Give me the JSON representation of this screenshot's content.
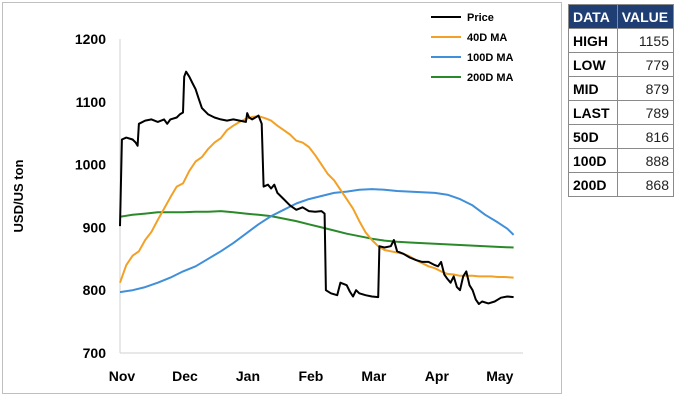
{
  "chart_data": {
    "type": "line",
    "ylabel": "USD/US ton",
    "xlabel": "",
    "ylim": [
      700,
      1200
    ],
    "yticks": [
      700,
      800,
      900,
      1000,
      1100,
      1200
    ],
    "xlim": [
      0,
      6.4
    ],
    "xticks": [
      {
        "label": "Nov",
        "x": 0
      },
      {
        "label": "Dec",
        "x": 1
      },
      {
        "label": "Jan",
        "x": 2
      },
      {
        "label": "Feb",
        "x": 3
      },
      {
        "label": "Mar",
        "x": 4
      },
      {
        "label": "Apr",
        "x": 5
      },
      {
        "label": "May",
        "x": 6
      }
    ],
    "grid": false,
    "legend_position": "top-right",
    "series": [
      {
        "name": "Price",
        "color": "#000000",
        "points": [
          [
            0,
            902
          ],
          [
            0.03,
            1040
          ],
          [
            0.1,
            1043
          ],
          [
            0.2,
            1040
          ],
          [
            0.25,
            1035
          ],
          [
            0.28,
            1030
          ],
          [
            0.3,
            1065
          ],
          [
            0.4,
            1070
          ],
          [
            0.5,
            1072
          ],
          [
            0.6,
            1068
          ],
          [
            0.7,
            1072
          ],
          [
            0.75,
            1065
          ],
          [
            0.8,
            1072
          ],
          [
            0.9,
            1075
          ],
          [
            0.95,
            1080
          ],
          [
            1.0,
            1083
          ],
          [
            1.02,
            1140
          ],
          [
            1.05,
            1148
          ],
          [
            1.1,
            1140
          ],
          [
            1.15,
            1130
          ],
          [
            1.2,
            1120
          ],
          [
            1.25,
            1105
          ],
          [
            1.3,
            1090
          ],
          [
            1.4,
            1080
          ],
          [
            1.5,
            1075
          ],
          [
            1.6,
            1072
          ],
          [
            1.7,
            1070
          ],
          [
            1.8,
            1072
          ],
          [
            1.9,
            1070
          ],
          [
            2.0,
            1068
          ],
          [
            2.02,
            1082
          ],
          [
            2.05,
            1075
          ],
          [
            2.1,
            1072
          ],
          [
            2.2,
            1078
          ],
          [
            2.25,
            1065
          ],
          [
            2.28,
            965
          ],
          [
            2.35,
            968
          ],
          [
            2.4,
            962
          ],
          [
            2.45,
            968
          ],
          [
            2.5,
            955
          ],
          [
            2.6,
            945
          ],
          [
            2.7,
            935
          ],
          [
            2.8,
            928
          ],
          [
            2.9,
            932
          ],
          [
            3.0,
            926
          ],
          [
            3.1,
            925
          ],
          [
            3.2,
            926
          ],
          [
            3.25,
            922
          ],
          [
            3.27,
            800
          ],
          [
            3.35,
            795
          ],
          [
            3.45,
            792
          ],
          [
            3.5,
            812
          ],
          [
            3.6,
            808
          ],
          [
            3.65,
            798
          ],
          [
            3.7,
            790
          ],
          [
            3.75,
            800
          ],
          [
            3.8,
            795
          ],
          [
            3.9,
            792
          ],
          [
            4.0,
            790
          ],
          [
            4.1,
            789
          ],
          [
            4.12,
            870
          ],
          [
            4.2,
            868
          ],
          [
            4.3,
            870
          ],
          [
            4.35,
            880
          ],
          [
            4.4,
            862
          ],
          [
            4.5,
            858
          ],
          [
            4.6,
            852
          ],
          [
            4.7,
            848
          ],
          [
            4.8,
            845
          ],
          [
            4.9,
            845
          ],
          [
            5.0,
            840
          ],
          [
            5.05,
            838
          ],
          [
            5.1,
            845
          ],
          [
            5.15,
            825
          ],
          [
            5.2,
            818
          ],
          [
            5.25,
            812
          ],
          [
            5.3,
            822
          ],
          [
            5.35,
            805
          ],
          [
            5.4,
            800
          ],
          [
            5.45,
            822
          ],
          [
            5.5,
            830
          ],
          [
            5.55,
            808
          ],
          [
            5.6,
            800
          ],
          [
            5.65,
            785
          ],
          [
            5.7,
            778
          ],
          [
            5.75,
            782
          ],
          [
            5.85,
            779
          ],
          [
            5.95,
            782
          ],
          [
            6.05,
            788
          ],
          [
            6.15,
            790
          ],
          [
            6.25,
            789
          ]
        ]
      },
      {
        "name": "40D MA",
        "color": "#f2a126",
        "points": [
          [
            0,
            812
          ],
          [
            0.1,
            840
          ],
          [
            0.2,
            855
          ],
          [
            0.3,
            862
          ],
          [
            0.4,
            880
          ],
          [
            0.5,
            893
          ],
          [
            0.6,
            912
          ],
          [
            0.7,
            930
          ],
          [
            0.8,
            948
          ],
          [
            0.9,
            965
          ],
          [
            1.0,
            970
          ],
          [
            1.1,
            990
          ],
          [
            1.2,
            1005
          ],
          [
            1.3,
            1012
          ],
          [
            1.4,
            1025
          ],
          [
            1.5,
            1035
          ],
          [
            1.6,
            1042
          ],
          [
            1.7,
            1055
          ],
          [
            1.8,
            1062
          ],
          [
            1.9,
            1068
          ],
          [
            2.0,
            1073
          ],
          [
            2.1,
            1076
          ],
          [
            2.2,
            1077
          ],
          [
            2.3,
            1074
          ],
          [
            2.4,
            1070
          ],
          [
            2.5,
            1062
          ],
          [
            2.6,
            1055
          ],
          [
            2.7,
            1048
          ],
          [
            2.8,
            1038
          ],
          [
            2.9,
            1035
          ],
          [
            3.0,
            1028
          ],
          [
            3.1,
            1015
          ],
          [
            3.2,
            1000
          ],
          [
            3.3,
            985
          ],
          [
            3.4,
            975
          ],
          [
            3.5,
            960
          ],
          [
            3.6,
            945
          ],
          [
            3.7,
            930
          ],
          [
            3.8,
            910
          ],
          [
            3.9,
            892
          ],
          [
            4.0,
            880
          ],
          [
            4.1,
            870
          ],
          [
            4.2,
            864
          ],
          [
            4.3,
            862
          ],
          [
            4.4,
            860
          ],
          [
            4.5,
            858
          ],
          [
            4.6,
            854
          ],
          [
            4.7,
            848
          ],
          [
            4.8,
            843
          ],
          [
            4.9,
            838
          ],
          [
            5.0,
            835
          ],
          [
            5.1,
            830
          ],
          [
            5.2,
            826
          ],
          [
            5.3,
            825
          ],
          [
            5.4,
            823
          ],
          [
            5.5,
            823
          ],
          [
            5.6,
            823
          ],
          [
            5.7,
            822
          ],
          [
            5.8,
            822
          ],
          [
            5.9,
            822
          ],
          [
            6.0,
            821
          ],
          [
            6.1,
            821
          ],
          [
            6.25,
            820
          ]
        ]
      },
      {
        "name": "100D MA",
        "color": "#3f8fd9",
        "points": [
          [
            0,
            797
          ],
          [
            0.2,
            800
          ],
          [
            0.4,
            805
          ],
          [
            0.6,
            812
          ],
          [
            0.8,
            820
          ],
          [
            1.0,
            830
          ],
          [
            1.2,
            838
          ],
          [
            1.4,
            850
          ],
          [
            1.6,
            862
          ],
          [
            1.8,
            875
          ],
          [
            2.0,
            890
          ],
          [
            2.2,
            905
          ],
          [
            2.4,
            918
          ],
          [
            2.6,
            928
          ],
          [
            2.8,
            938
          ],
          [
            3.0,
            945
          ],
          [
            3.2,
            950
          ],
          [
            3.4,
            955
          ],
          [
            3.6,
            957
          ],
          [
            3.8,
            960
          ],
          [
            4.0,
            961
          ],
          [
            4.2,
            960
          ],
          [
            4.4,
            958
          ],
          [
            4.6,
            957
          ],
          [
            4.8,
            956
          ],
          [
            5.0,
            955
          ],
          [
            5.2,
            952
          ],
          [
            5.4,
            945
          ],
          [
            5.6,
            935
          ],
          [
            5.8,
            920
          ],
          [
            6.0,
            908
          ],
          [
            6.15,
            898
          ],
          [
            6.25,
            888
          ]
        ]
      },
      {
        "name": "200D MA",
        "color": "#2a8a2a",
        "points": [
          [
            0,
            917
          ],
          [
            0.2,
            920
          ],
          [
            0.4,
            922
          ],
          [
            0.6,
            924
          ],
          [
            0.8,
            924
          ],
          [
            1.0,
            924
          ],
          [
            1.2,
            925
          ],
          [
            1.4,
            925
          ],
          [
            1.6,
            926
          ],
          [
            1.8,
            924
          ],
          [
            2.0,
            922
          ],
          [
            2.2,
            920
          ],
          [
            2.4,
            918
          ],
          [
            2.6,
            914
          ],
          [
            2.8,
            910
          ],
          [
            3.0,
            905
          ],
          [
            3.2,
            900
          ],
          [
            3.4,
            895
          ],
          [
            3.6,
            890
          ],
          [
            3.8,
            886
          ],
          [
            4.0,
            882
          ],
          [
            4.2,
            879
          ],
          [
            4.4,
            877
          ],
          [
            4.6,
            876
          ],
          [
            4.8,
            875
          ],
          [
            5.0,
            874
          ],
          [
            5.2,
            873
          ],
          [
            5.4,
            872
          ],
          [
            5.6,
            871
          ],
          [
            5.8,
            870
          ],
          [
            6.0,
            869
          ],
          [
            6.25,
            868
          ]
        ]
      }
    ]
  },
  "stats_table": {
    "headers": [
      "DATA",
      "VALUE"
    ],
    "rows": [
      {
        "label": "HIGH",
        "value": "1155"
      },
      {
        "label": "LOW",
        "value": "779"
      },
      {
        "label": "MID",
        "value": "879"
      },
      {
        "label": "LAST",
        "value": "789"
      },
      {
        "label": "50D",
        "value": "816"
      },
      {
        "label": "100D",
        "value": "888"
      },
      {
        "label": "200D",
        "value": "868"
      }
    ]
  }
}
